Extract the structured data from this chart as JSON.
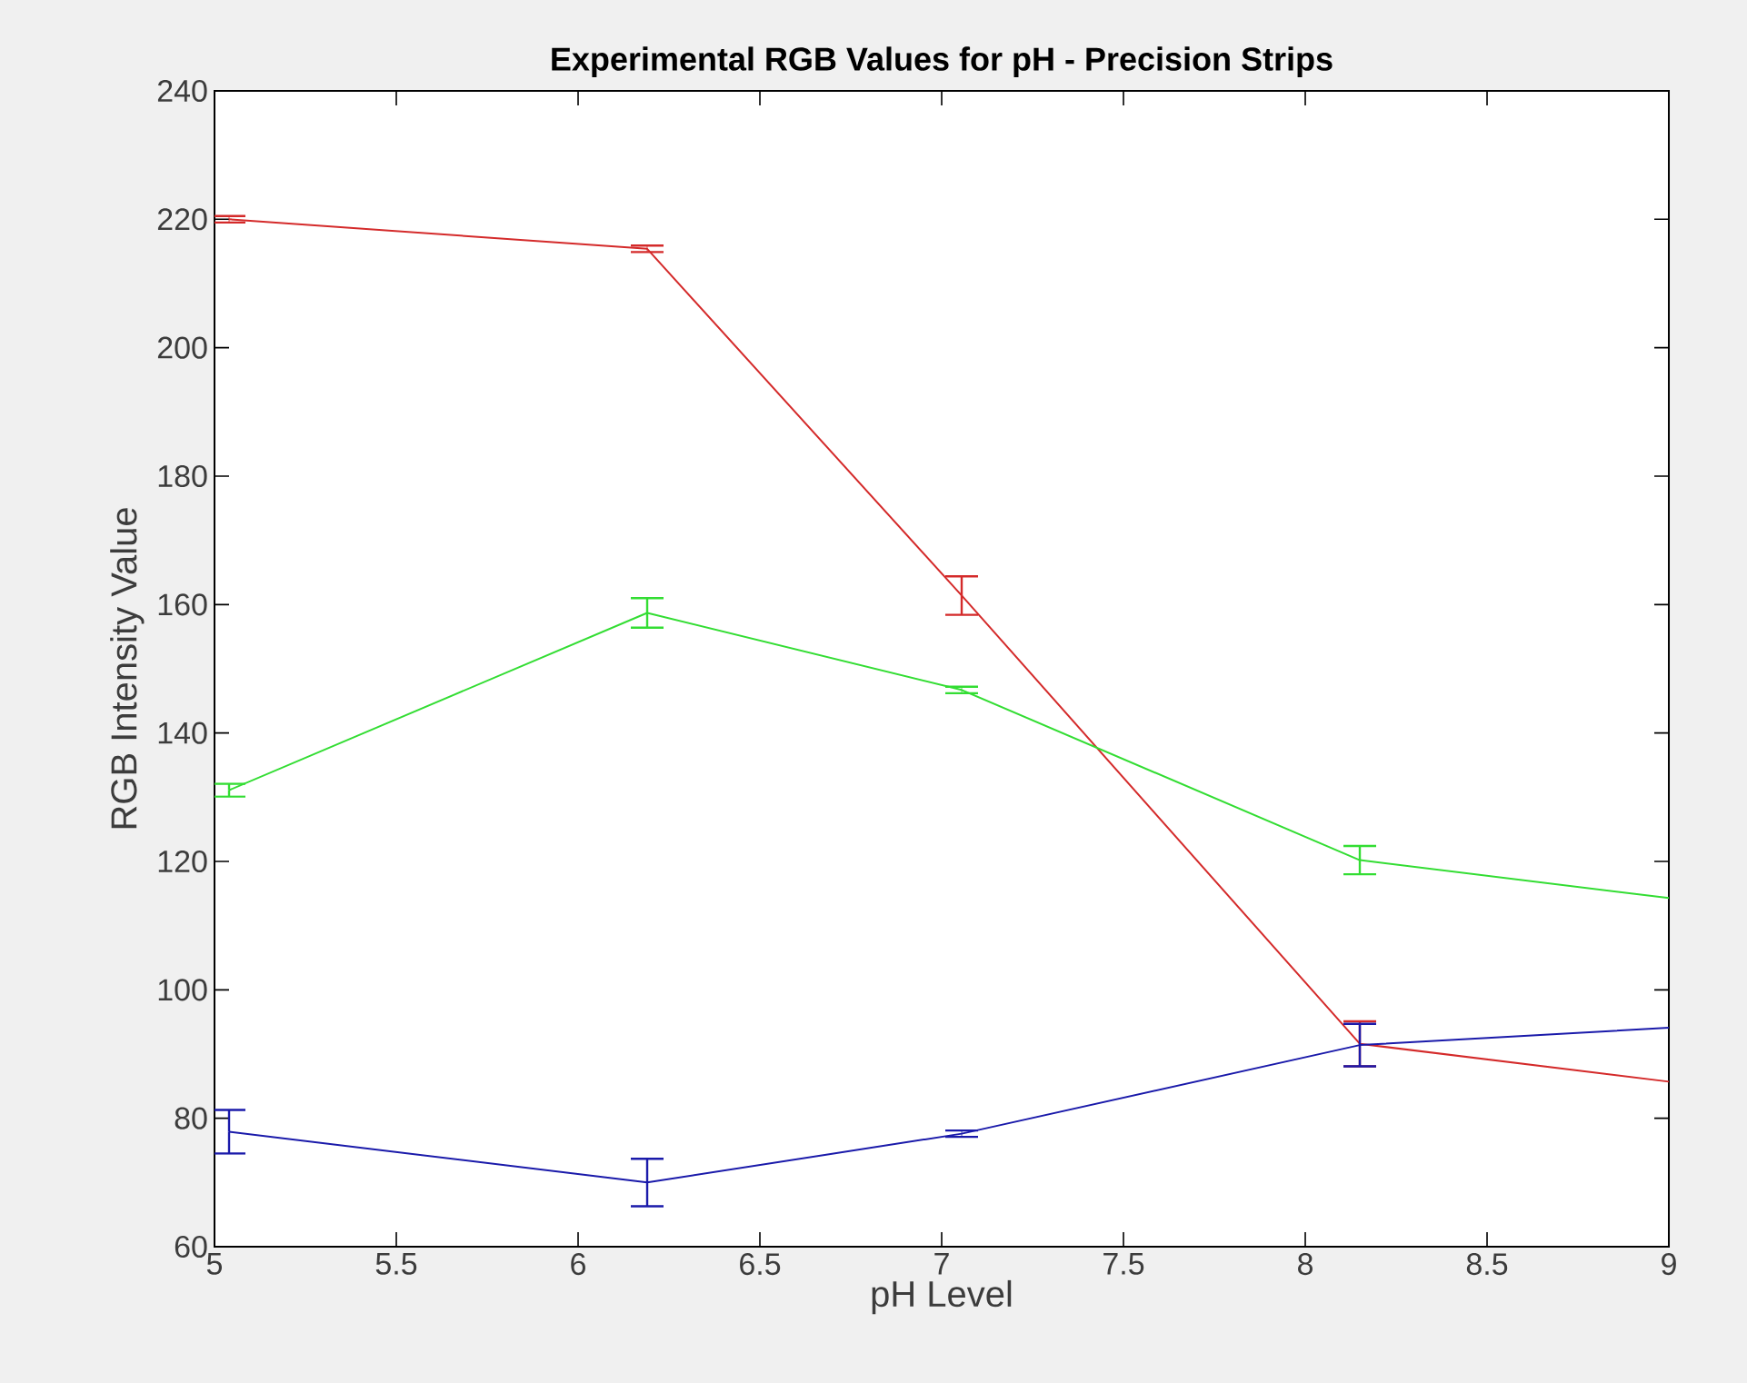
{
  "chart_data": {
    "type": "line",
    "title": "Experimental RGB Values for pH - Precision Strips",
    "xlabel": "pH Level",
    "ylabel": "RGB Intensity Value",
    "xlim": [
      5,
      9
    ],
    "ylim": [
      60,
      240
    ],
    "xticks": [
      5,
      5.5,
      6,
      6.5,
      7,
      7.5,
      8,
      8.5,
      9
    ],
    "yticks": [
      60,
      80,
      100,
      120,
      140,
      160,
      180,
      200,
      220,
      240
    ],
    "grid": false,
    "marker": "none",
    "line_style": "solid",
    "x": [
      5.04,
      6.19,
      7.055,
      8.15,
      9
    ],
    "series": [
      {
        "color": "#d42a2a",
        "values": [
          220,
          215.4,
          161.4,
          91.6,
          85.7
        ],
        "errors": [
          0.5,
          0.5,
          3,
          3.5,
          null
        ]
      },
      {
        "color": "#33dd33",
        "values": [
          131.1,
          158.7,
          146.7,
          120.2,
          114.3
        ],
        "errors": [
          1,
          2.3,
          0.5,
          2.2,
          null
        ]
      },
      {
        "color": "#1a1aaa",
        "values": [
          77.9,
          70,
          77.6,
          91.4,
          94.1
        ],
        "errors": [
          3.4,
          3.7,
          0.5,
          3.3,
          null
        ]
      }
    ]
  }
}
